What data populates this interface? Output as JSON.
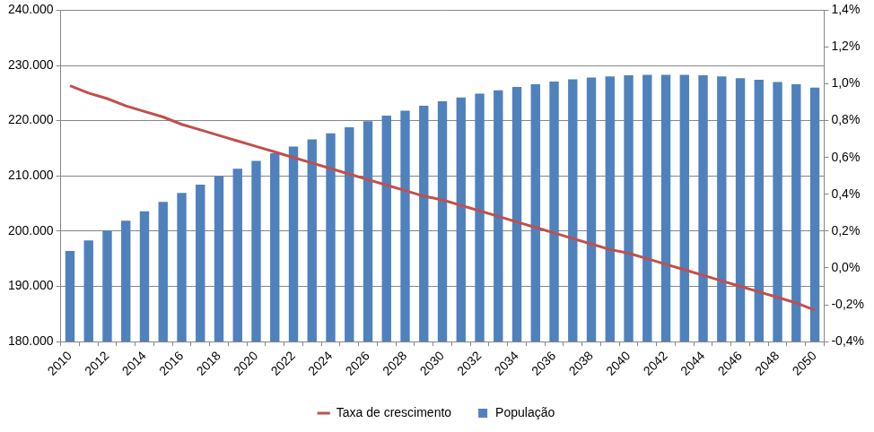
{
  "chart_data": {
    "type": "bar",
    "categories": [
      2010,
      null,
      2012,
      null,
      2014,
      null,
      2016,
      null,
      2018,
      null,
      2020,
      null,
      2022,
      null,
      2024,
      null,
      2026,
      null,
      2028,
      null,
      2030,
      null,
      2032,
      null,
      2034,
      null,
      2036,
      null,
      2038,
      null,
      2040,
      null,
      2042,
      null,
      2044,
      null,
      2046,
      null,
      2048,
      null,
      2050
    ],
    "series": [
      {
        "name": "População",
        "type": "bar",
        "color": "#4f81bd",
        "values": [
          196400,
          198300,
          200100,
          201900,
          203600,
          205300,
          206900,
          208400,
          209900,
          211300,
          212700,
          214100,
          215300,
          216600,
          217700,
          218800,
          219900,
          220900,
          221800,
          222700,
          223500,
          224200,
          224900,
          225500,
          226100,
          226600,
          227100,
          227500,
          227800,
          228000,
          228200,
          228300,
          228300,
          228300,
          228200,
          228000,
          227700,
          227400,
          227000,
          226600,
          226000
        ]
      },
      {
        "name": "Taxa de crescimento",
        "type": "line",
        "color": "#c0504d",
        "axis": "y2",
        "values": [
          0.99,
          0.95,
          0.92,
          0.88,
          0.85,
          0.82,
          0.78,
          0.75,
          0.72,
          0.69,
          0.66,
          0.63,
          0.6,
          0.57,
          0.54,
          0.51,
          0.48,
          0.45,
          0.42,
          0.39,
          0.37,
          0.34,
          0.31,
          0.28,
          0.25,
          0.22,
          0.19,
          0.16,
          0.13,
          0.1,
          0.08,
          0.05,
          0.02,
          -0.01,
          -0.04,
          -0.07,
          -0.1,
          -0.13,
          -0.16,
          -0.19,
          -0.23
        ]
      }
    ],
    "ylim": [
      180000,
      240000
    ],
    "yticks": [
      {
        "value": 180000,
        "label": "180.000"
      },
      {
        "value": 190000,
        "label": "190.000"
      },
      {
        "value": 200000,
        "label": "200.000"
      },
      {
        "value": 210000,
        "label": "210.000"
      },
      {
        "value": 220000,
        "label": "220.000"
      },
      {
        "value": 230000,
        "label": "230.000"
      },
      {
        "value": 240000,
        "label": "240.000"
      }
    ],
    "y2lim": [
      -0.4,
      1.4
    ],
    "y2ticks": [
      {
        "value": -0.4,
        "label": "-0,4%"
      },
      {
        "value": -0.2,
        "label": "-0,2%"
      },
      {
        "value": 0,
        "label": "0,0%"
      },
      {
        "value": 0.2,
        "label": "0,2%"
      },
      {
        "value": 0.4,
        "label": "0,4%"
      },
      {
        "value": 0.6,
        "label": "0,6%"
      },
      {
        "value": 0.8,
        "label": "0,8%"
      },
      {
        "value": 1.0,
        "label": "1,0%"
      },
      {
        "value": 1.2,
        "label": "1,2%"
      },
      {
        "value": 1.4,
        "label": "1,4%"
      }
    ],
    "grid": true,
    "legend": "bottom"
  }
}
